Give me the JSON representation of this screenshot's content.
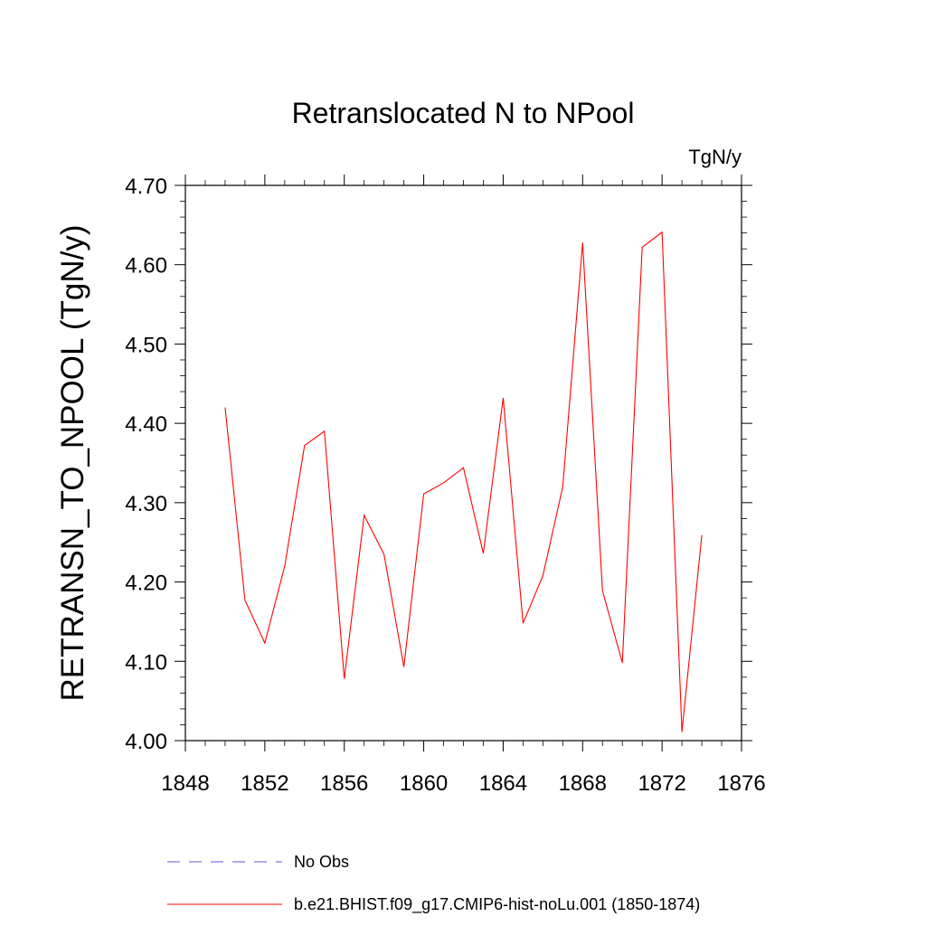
{
  "chart_data": {
    "type": "line",
    "title": "Retranslocated N to NPool",
    "units_label": "TgN/y",
    "ylabel": "RETRANSN_TO_NPOOL  (TgN/y)",
    "xlim": [
      1848,
      1876
    ],
    "ylim": [
      4.0,
      4.7
    ],
    "x_ticks": [
      1848,
      1852,
      1856,
      1860,
      1864,
      1868,
      1872,
      1876
    ],
    "x_tick_labels": [
      "1848",
      "1852",
      "1856",
      "1860",
      "1864",
      "1868",
      "1872",
      "1876"
    ],
    "y_ticks": [
      4.0,
      4.1,
      4.2,
      4.3,
      4.4,
      4.5,
      4.6,
      4.7
    ],
    "y_tick_labels": [
      "4.00",
      "4.10",
      "4.20",
      "4.30",
      "4.40",
      "4.50",
      "4.60",
      "4.70"
    ],
    "grid": false,
    "series": [
      {
        "name": "b.e21.BHIST.f09_g17.CMIP6-hist-noLu.001 (1850-1874)",
        "color": "#ff0000",
        "x": [
          1850,
          1851,
          1852,
          1853,
          1854,
          1855,
          1856,
          1857,
          1858,
          1859,
          1860,
          1861,
          1862,
          1863,
          1864,
          1865,
          1866,
          1867,
          1868,
          1869,
          1870,
          1871,
          1872,
          1873,
          1874
        ],
        "y": [
          4.42,
          4.177,
          4.123,
          4.22,
          4.372,
          4.39,
          4.078,
          4.284,
          4.235,
          4.093,
          4.311,
          4.325,
          4.344,
          4.236,
          4.432,
          4.148,
          4.208,
          4.32,
          4.628,
          4.189,
          4.098,
          4.622,
          4.641,
          4.011,
          4.259
        ]
      }
    ],
    "legend": {
      "placement": "bottom",
      "entries": [
        {
          "label": "No Obs",
          "color": "#5a5ad6",
          "style": "dashed"
        },
        {
          "label": "b.e21.BHIST.f09_g17.CMIP6-hist-noLu.001 (1850-1874)",
          "color": "#ff0000",
          "style": "solid"
        }
      ]
    }
  }
}
